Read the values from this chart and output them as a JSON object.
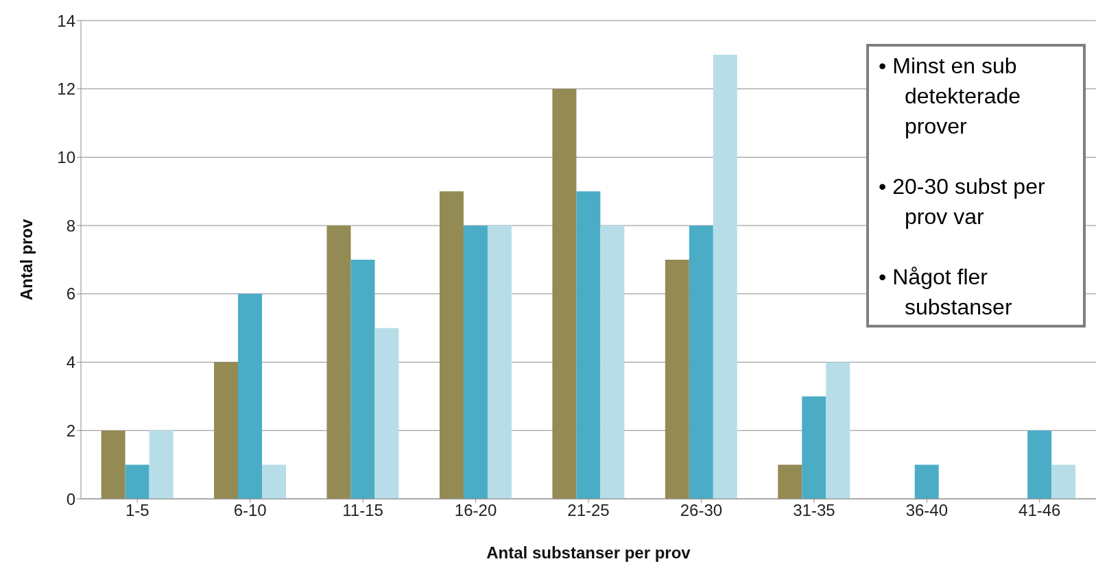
{
  "chart_data": {
    "type": "bar",
    "xlabel": "Antal substanser per prov",
    "ylabel": "Antal prov",
    "categories": [
      "1-5",
      "6-10",
      "11-15",
      "16-20",
      "21-25",
      "26-30",
      "31-35",
      "36-40",
      "41-46"
    ],
    "series": [
      {
        "color": "#948a54",
        "values": [
          2,
          4,
          8,
          9,
          12,
          7,
          1,
          0,
          0
        ]
      },
      {
        "color": "#4bacc6",
        "values": [
          1,
          6,
          7,
          8,
          9,
          8,
          3,
          1,
          2
        ]
      },
      {
        "color": "#b7dee8",
        "values": [
          2,
          1,
          5,
          8,
          8,
          13,
          4,
          0,
          1
        ]
      }
    ],
    "ylim": [
      0,
      14
    ],
    "yticks": [
      0,
      2,
      4,
      6,
      8,
      10,
      12,
      14
    ],
    "grid": "y",
    "legend": false,
    "annotations": [
      "•\tMinst en sub detekterade prover",
      "•\t20-30 subst per prov var",
      "•\tNågot fler substanser"
    ]
  }
}
